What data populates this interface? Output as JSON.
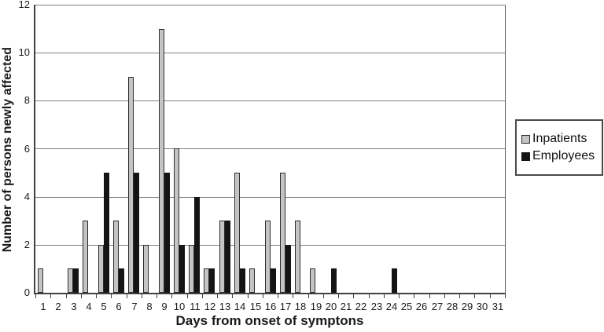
{
  "chart_data": {
    "type": "bar",
    "title": "",
    "xlabel": "Days from onset of symptons",
    "ylabel": "Number of persons newly affected",
    "categories": [
      1,
      2,
      3,
      4,
      5,
      6,
      7,
      8,
      9,
      10,
      11,
      12,
      13,
      14,
      15,
      16,
      17,
      18,
      19,
      20,
      21,
      22,
      23,
      24,
      25,
      26,
      27,
      28,
      29,
      30,
      31
    ],
    "series": [
      {
        "name": "Inpatients",
        "color": "#c4c4c4",
        "values": [
          1,
          0,
          1,
          3,
          2,
          3,
          9,
          2,
          11,
          6,
          2,
          1,
          3,
          5,
          1,
          3,
          5,
          3,
          1,
          0,
          0,
          0,
          0,
          0,
          0,
          0,
          0,
          0,
          0,
          0,
          0
        ]
      },
      {
        "name": "Employees",
        "color": "#141414",
        "values": [
          0,
          0,
          1,
          0,
          5,
          1,
          5,
          0,
          5,
          2,
          4,
          1,
          3,
          1,
          0,
          1,
          2,
          0,
          0,
          1,
          0,
          0,
          0,
          1,
          0,
          0,
          0,
          0,
          0,
          0,
          0
        ]
      }
    ],
    "ylim": [
      0,
      12
    ],
    "y_ticks": [
      0,
      2,
      4,
      6,
      8,
      10,
      12
    ],
    "grid": "horizontal",
    "legend_position": "right"
  },
  "colors": {
    "background": "#ffffff",
    "axis": "#404040",
    "gridline": "#7f7f7f",
    "bar_border": "#2e2e2e",
    "text": "#1a1a1a"
  }
}
